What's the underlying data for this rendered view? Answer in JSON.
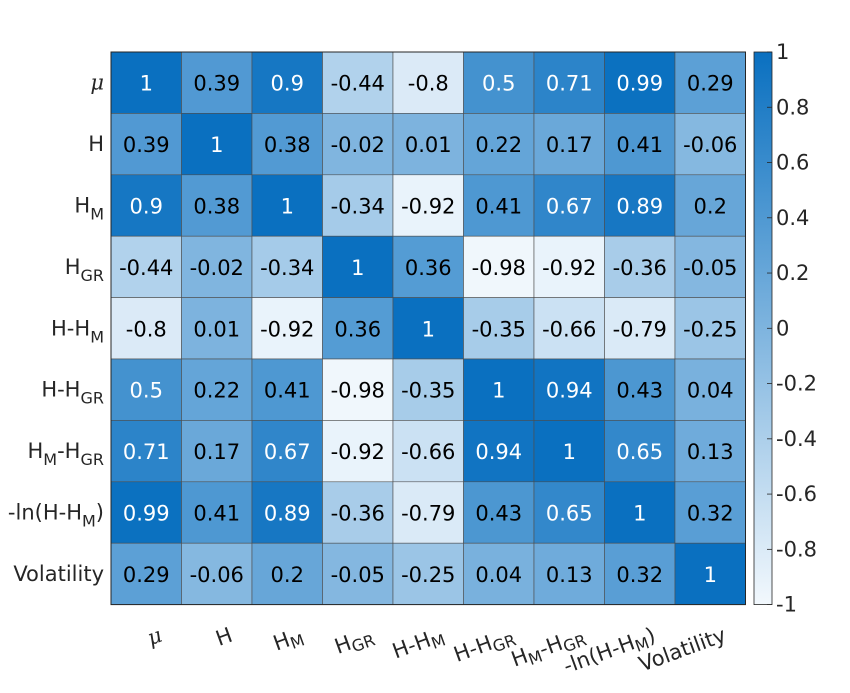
{
  "chart_data": {
    "type": "heatmap",
    "labels": [
      {
        "id": "mu",
        "base": "μ",
        "sub": ""
      },
      {
        "id": "H",
        "base": "H",
        "sub": ""
      },
      {
        "id": "HM",
        "base": "H",
        "sub": "M"
      },
      {
        "id": "HGR",
        "base": "H",
        "sub": "GR"
      },
      {
        "id": "H-HM",
        "base": "H-H",
        "sub": "M"
      },
      {
        "id": "H-HGR",
        "base": "H-H",
        "sub": "GR"
      },
      {
        "id": "HM-HGR",
        "base": "H",
        "sub": "M",
        "base2": "-H",
        "sub2": "GR"
      },
      {
        "id": "-ln(H-HM)",
        "base": "-ln(H-H",
        "sub": "M",
        "tail": ")"
      },
      {
        "id": "Volatility",
        "base": "Volatility",
        "sub": ""
      }
    ],
    "values": [
      [
        1,
        0.39,
        0.9,
        -0.44,
        -0.8,
        0.5,
        0.71,
        0.99,
        0.29
      ],
      [
        0.39,
        1,
        0.38,
        -0.02,
        0.01,
        0.22,
        0.17,
        0.41,
        -0.06
      ],
      [
        0.9,
        0.38,
        1,
        -0.34,
        -0.92,
        0.41,
        0.67,
        0.89,
        0.2
      ],
      [
        -0.44,
        -0.02,
        -0.34,
        1,
        0.36,
        -0.98,
        -0.92,
        -0.36,
        -0.05
      ],
      [
        -0.8,
        0.01,
        -0.92,
        0.36,
        1,
        -0.35,
        -0.66,
        -0.79,
        -0.25
      ],
      [
        0.5,
        0.22,
        0.41,
        -0.98,
        -0.35,
        1,
        0.94,
        0.43,
        0.04
      ],
      [
        0.71,
        0.17,
        0.67,
        -0.92,
        -0.66,
        0.94,
        1,
        0.65,
        0.13
      ],
      [
        0.99,
        0.41,
        0.89,
        -0.36,
        -0.79,
        0.43,
        0.65,
        1,
        0.32
      ],
      [
        0.29,
        -0.06,
        0.2,
        -0.05,
        -0.25,
        0.04,
        0.13,
        0.32,
        1
      ]
    ],
    "colorbar": {
      "range": [
        -1,
        1
      ],
      "ticks": [
        "1",
        "0.8",
        "0.6",
        "0.4",
        "0.2",
        "0",
        "-0.2",
        "-0.4",
        "-0.6",
        "-0.8",
        "-1"
      ],
      "low_color": "#f2f8fd",
      "high_color": "#0a70c0"
    },
    "grid": true,
    "legend": "right colorbar"
  }
}
